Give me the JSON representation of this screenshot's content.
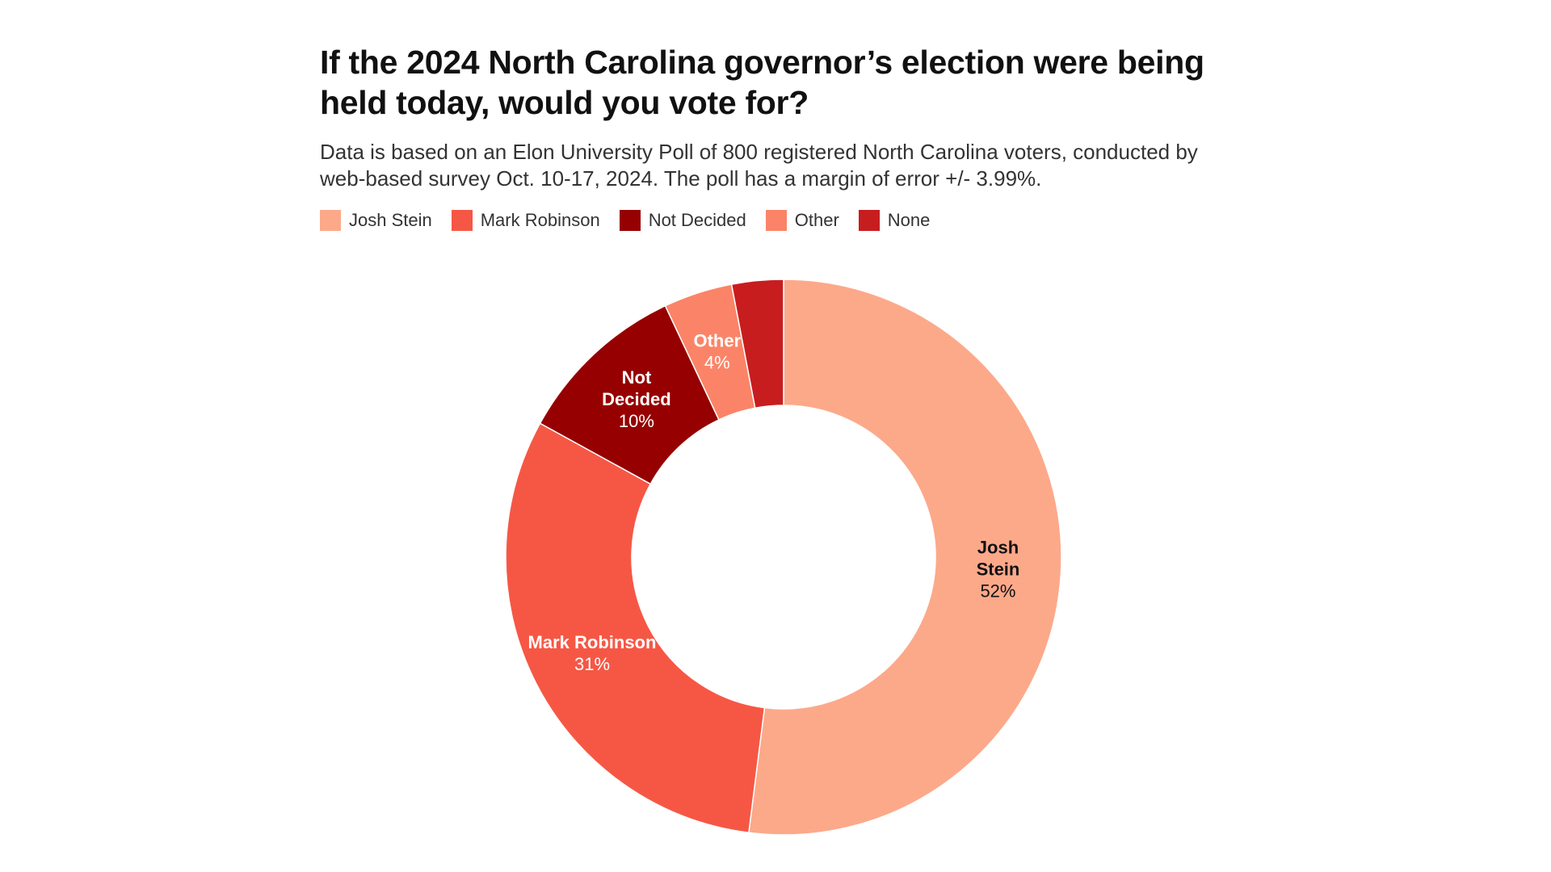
{
  "chart_data": {
    "type": "pie",
    "donut": true,
    "title": "If the 2024 North Carolina governor’s election were being held today, would you vote for?",
    "subtitle": "Data is based on an Elon University Poll of 800 registered North Carolina voters, conducted by web-based survey Oct. 10-17, 2024. The poll has a margin of error +/- 3.99%.",
    "legend_position": "top-left",
    "slices": [
      {
        "label": "Josh Stein",
        "label_lines": [
          "Josh",
          "Stein"
        ],
        "value": 52,
        "display": "52%",
        "color": "#fca98a",
        "label_color": "#111111"
      },
      {
        "label": "Mark Robinson",
        "label_lines": [
          "Mark Robinson"
        ],
        "value": 31,
        "display": "31%",
        "color": "#f65745",
        "label_color": "#ffffff"
      },
      {
        "label": "Not Decided",
        "label_lines": [
          "Not",
          "Decided"
        ],
        "value": 10,
        "display": "10%",
        "color": "#960000",
        "label_color": "#ffffff"
      },
      {
        "label": "Other",
        "label_lines": [
          "Other"
        ],
        "value": 4,
        "display": "4%",
        "color": "#fb8468",
        "label_color": "#ffffff"
      },
      {
        "label": "None",
        "label_lines": [],
        "value": 3,
        "display": "",
        "color": "#c81d1f",
        "label_color": "#ffffff"
      }
    ]
  }
}
